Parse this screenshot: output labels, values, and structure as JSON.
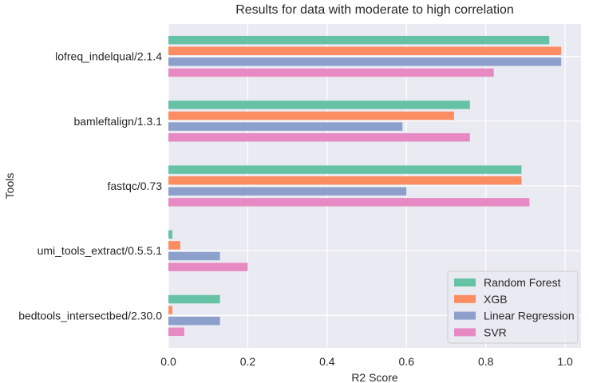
{
  "chart_data": {
    "type": "bar",
    "orientation": "horizontal",
    "title": "Results for data with moderate to high correlation",
    "xlabel": "R2 Score",
    "ylabel": "Tools",
    "xlim": [
      0,
      1.04
    ],
    "xticks": [
      "0.0",
      "0.2",
      "0.4",
      "0.6",
      "0.8",
      "1.0"
    ],
    "grid": true,
    "legend_position": "bottom-right",
    "categories": [
      "lofreq_indelqual/2.1.4",
      "bamleftalign/1.3.1",
      "fastqc/0.73",
      "umi_tools_extract/0.5.5.1",
      "bedtools_intersectbed/2.30.0"
    ],
    "series": [
      {
        "name": "Random Forest",
        "color": "#66c2a5",
        "values": [
          0.96,
          0.76,
          0.89,
          0.01,
          0.13
        ]
      },
      {
        "name": "XGB",
        "color": "#fc8d62",
        "values": [
          0.99,
          0.72,
          0.89,
          0.03,
          0.01
        ]
      },
      {
        "name": "Linear Regression",
        "color": "#8da0cb",
        "values": [
          0.99,
          0.59,
          0.6,
          0.13,
          0.13
        ]
      },
      {
        "name": "SVR",
        "color": "#e78ac3",
        "values": [
          0.82,
          0.76,
          0.91,
          0.2,
          0.04
        ]
      }
    ]
  }
}
